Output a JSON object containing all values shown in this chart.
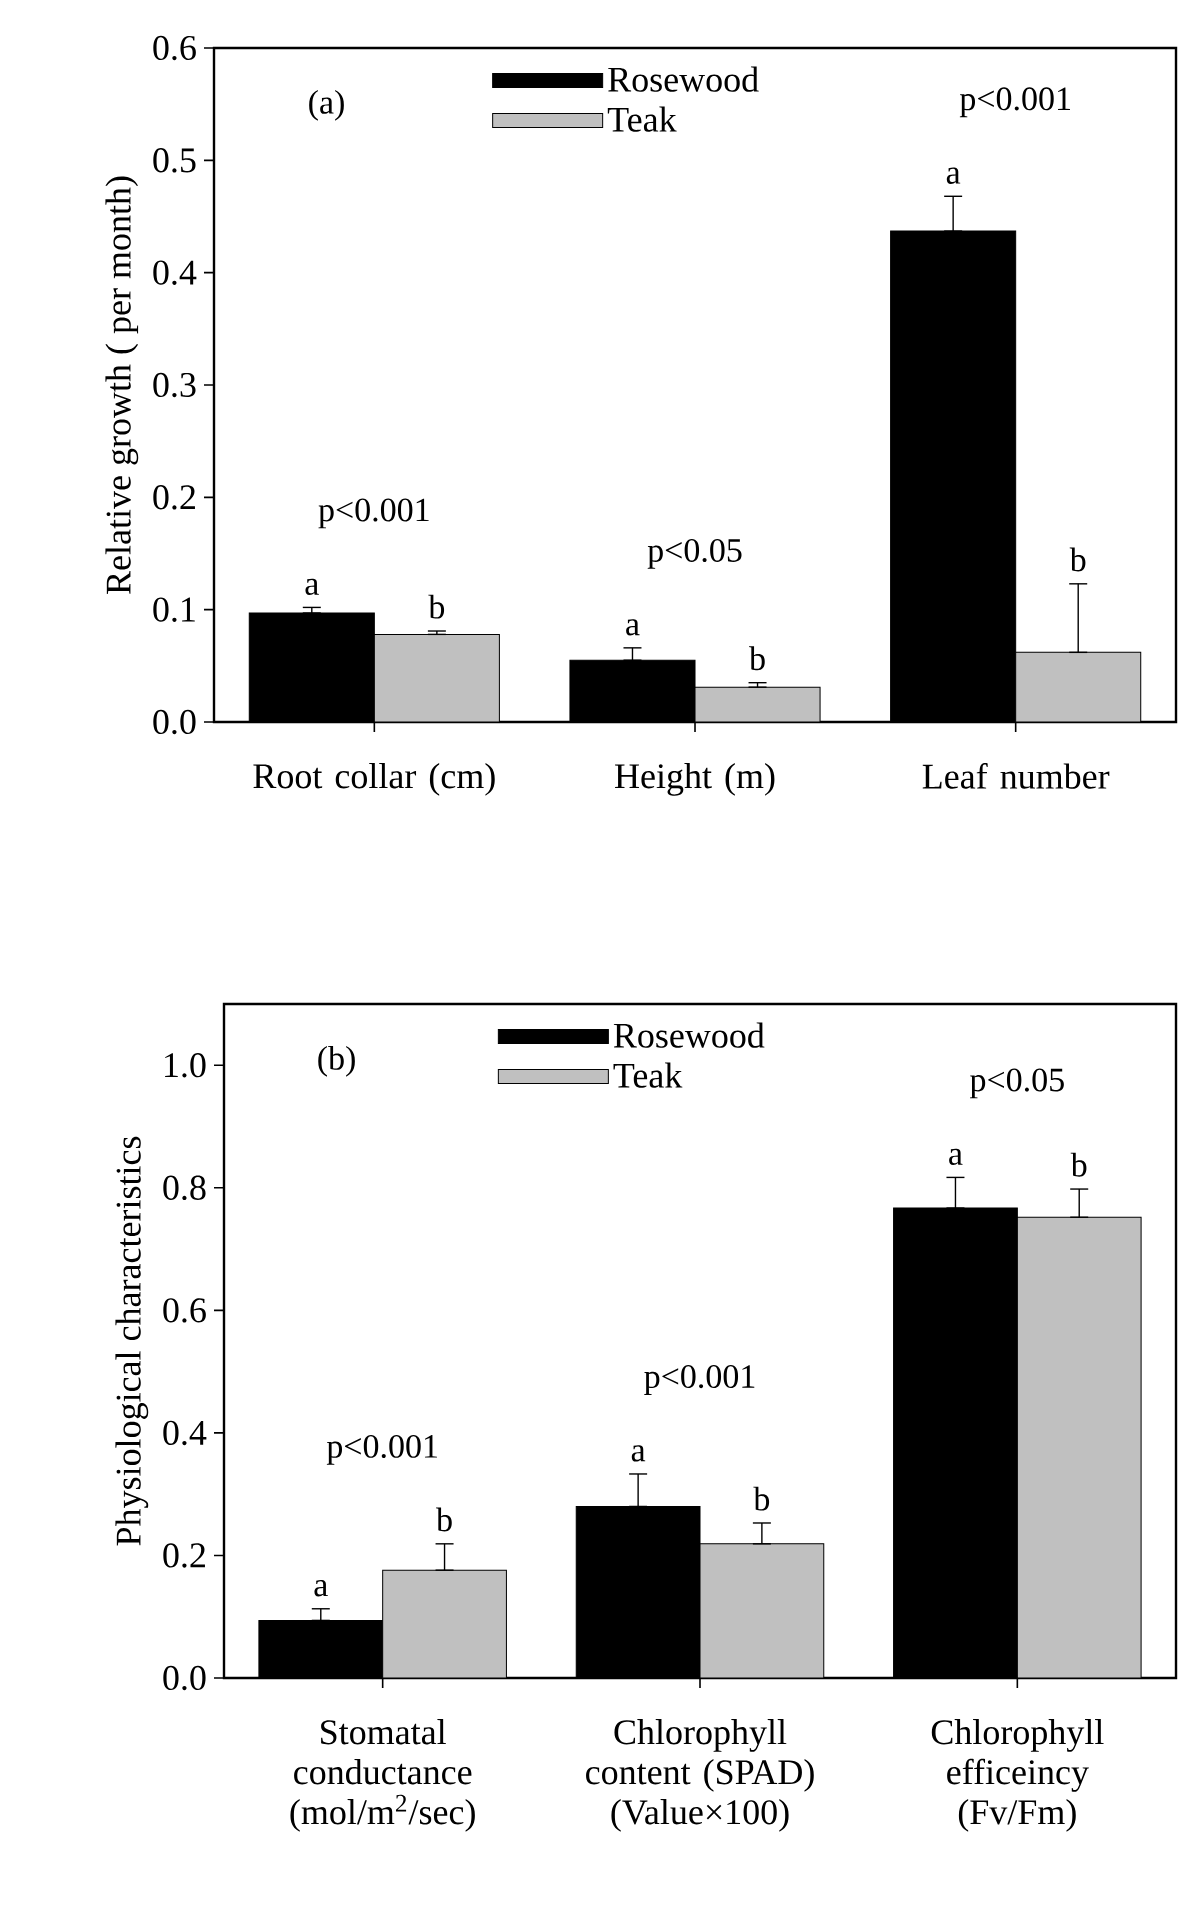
{
  "chart_data": [
    {
      "type": "bar",
      "ylabel": "Relative growth ( per month)",
      "categories": [
        "Root collar (cm)",
        "Height (m)",
        "Leaf number"
      ],
      "series": [
        {
          "name": "Rosewood",
          "color": "#000000",
          "values": [
            0.097,
            0.055,
            0.437
          ],
          "errors": [
            [
              0.097,
              0.102
            ],
            [
              0.055,
              0.066
            ],
            [
              0.437,
              0.468
            ]
          ],
          "value_labels": [
            "a",
            "a",
            "a"
          ]
        },
        {
          "name": "Teak",
          "color": "#c0c0c0",
          "values": [
            0.078,
            0.031,
            0.062
          ],
          "errors": [
            [
              0.078,
              0.081
            ],
            [
              0.031,
              0.035
            ],
            [
              0.062,
              0.123
            ]
          ],
          "value_labels": [
            "b",
            "b",
            "b"
          ]
        }
      ],
      "ylim": [
        0,
        0.6
      ],
      "yticks": [
        {
          "value": 0,
          "label": "0.0"
        },
        0.1,
        0.2,
        0.3,
        0.4,
        0.5,
        0.6
      ],
      "legend": "top",
      "annotations": [
        "(a)",
        "p<0.001",
        "p<0.05",
        "p<0.001"
      ]
    },
    {
      "type": "bar",
      "ylabel": "Physiological characteristics",
      "categories": [
        "Stomatal conductance (mol/m$^{2}$/sec)",
        "Chlorophyll content (SPAD) (Value×100)",
        "Chlorophyll efficeincy (Fv/Fm)"
      ],
      "series": [
        {
          "name": "Rosewood",
          "color": "#000000",
          "values": [
            0.094,
            0.28,
            0.767
          ],
          "errors": [
            [
              0.094,
              0.113
            ],
            [
              0.28,
              0.333
            ],
            [
              0.767,
              0.817
            ]
          ],
          "value_labels": [
            "a",
            "a",
            "a"
          ]
        },
        {
          "name": "Teak",
          "color": "#c0c0c0",
          "values": [
            0.176,
            0.219,
            0.752
          ],
          "errors": [
            [
              0.176,
              0.219
            ],
            [
              0.219,
              0.253
            ],
            [
              0.752,
              0.798
            ]
          ],
          "value_labels": [
            "b",
            "b",
            "b"
          ]
        }
      ],
      "ylim": [
        0,
        1.1
      ],
      "yticks": [
        {
          "value": 0,
          "label": "0.0"
        },
        {
          "value": 0.2,
          "label": "0.2"
        },
        {
          "value": 0.4,
          "label": "0.4"
        },
        {
          "value": 0.6,
          "label": "0.6"
        },
        {
          "value": 0.8,
          "label": "0.8"
        },
        {
          "value": 1.0,
          "label": "1.0"
        }
      ],
      "legend": "top",
      "annotations": [
        "(b)",
        "p<0.001",
        "p<0.001",
        "p<0.05"
      ]
    }
  ]
}
